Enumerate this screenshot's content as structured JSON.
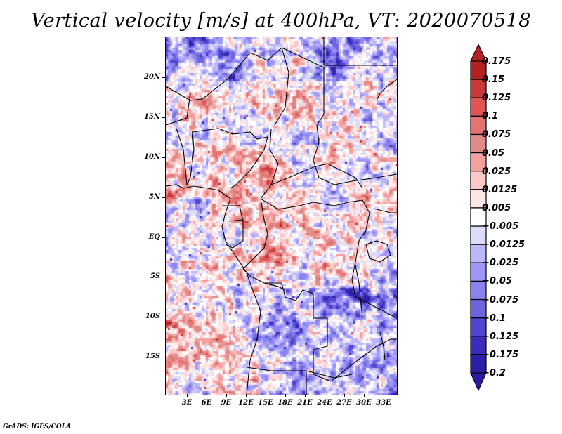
{
  "title": "Vertical velocity [m/s] at 400hPa, VT: 2020070518",
  "credit": "GrADS: IGES/COLA",
  "map": {
    "variable": "Vertical velocity",
    "units": "m/s",
    "level": "400hPa",
    "valid_time": "2020070518",
    "lon_range": [
      0,
      35
    ],
    "lat_range": [
      -20,
      24
    ],
    "y_ticks": [
      {
        "label": "20N",
        "lat": 20
      },
      {
        "label": "15N",
        "lat": 15
      },
      {
        "label": "10N",
        "lat": 10
      },
      {
        "label": "5N",
        "lat": 5
      },
      {
        "label": "EQ",
        "lat": 0
      },
      {
        "label": "5S",
        "lat": -5
      },
      {
        "label": "10S",
        "lat": -10
      },
      {
        "label": "15S",
        "lat": -15
      }
    ],
    "x_ticks": [
      {
        "label": "3E",
        "lon": 3
      },
      {
        "label": "6E",
        "lon": 6
      },
      {
        "label": "9E",
        "lon": 9
      },
      {
        "label": "12E",
        "lon": 12
      },
      {
        "label": "15E",
        "lon": 15
      },
      {
        "label": "18E",
        "lon": 18
      },
      {
        "label": "21E",
        "lon": 21
      },
      {
        "label": "24E",
        "lon": 24
      },
      {
        "label": "27E",
        "lon": 27
      },
      {
        "label": "30E",
        "lon": 30
      },
      {
        "label": "33E",
        "lon": 33
      }
    ]
  },
  "colorbar": {
    "levels": [
      {
        "label": "0.175",
        "color": "#b22222"
      },
      {
        "label": "0.15",
        "color": "#c83a3a"
      },
      {
        "label": "0.125",
        "color": "#e05555"
      },
      {
        "label": "0.1",
        "color": "#e57373"
      },
      {
        "label": "0.075",
        "color": "#e08a8a"
      },
      {
        "label": "0.05",
        "color": "#f4a0a0"
      },
      {
        "label": "0.025",
        "color": "#fcc8c8"
      },
      {
        "label": "0.0125",
        "color": "#ffe6e6"
      },
      {
        "label": "0.005",
        "color": "#ffffff"
      },
      {
        "label": "−0.005",
        "color": "#dcdcfa"
      },
      {
        "label": "−0.0125",
        "color": "#bdb6fa"
      },
      {
        "label": "−0.025",
        "color": "#a096fa"
      },
      {
        "label": "−0.05",
        "color": "#8a82ef"
      },
      {
        "label": "−0.075",
        "color": "#6e64dc"
      },
      {
        "label": "−0.1",
        "color": "#5046d0"
      },
      {
        "label": "−0.125",
        "color": "#3c2cbe"
      },
      {
        "label": "−0.175",
        "color": "#2e20a6"
      },
      {
        "label": "−0.2",
        "color": ""
      }
    ],
    "top_arrow_color": "#b22222",
    "bottom_arrow_color": "#2a1aa0",
    "swatch_colors_top_to_bottom": [
      "#b22222",
      "#c83a3a",
      "#e05555",
      "#e57373",
      "#e08a8a",
      "#f4a0a0",
      "#fcc8c8",
      "#ffe6e6",
      "#ffffff",
      "#dcdcfa",
      "#bdb6fa",
      "#a096fa",
      "#8a82ef",
      "#6e64dc",
      "#5046d0",
      "#3c2cbe",
      "#2e20a6"
    ]
  }
}
